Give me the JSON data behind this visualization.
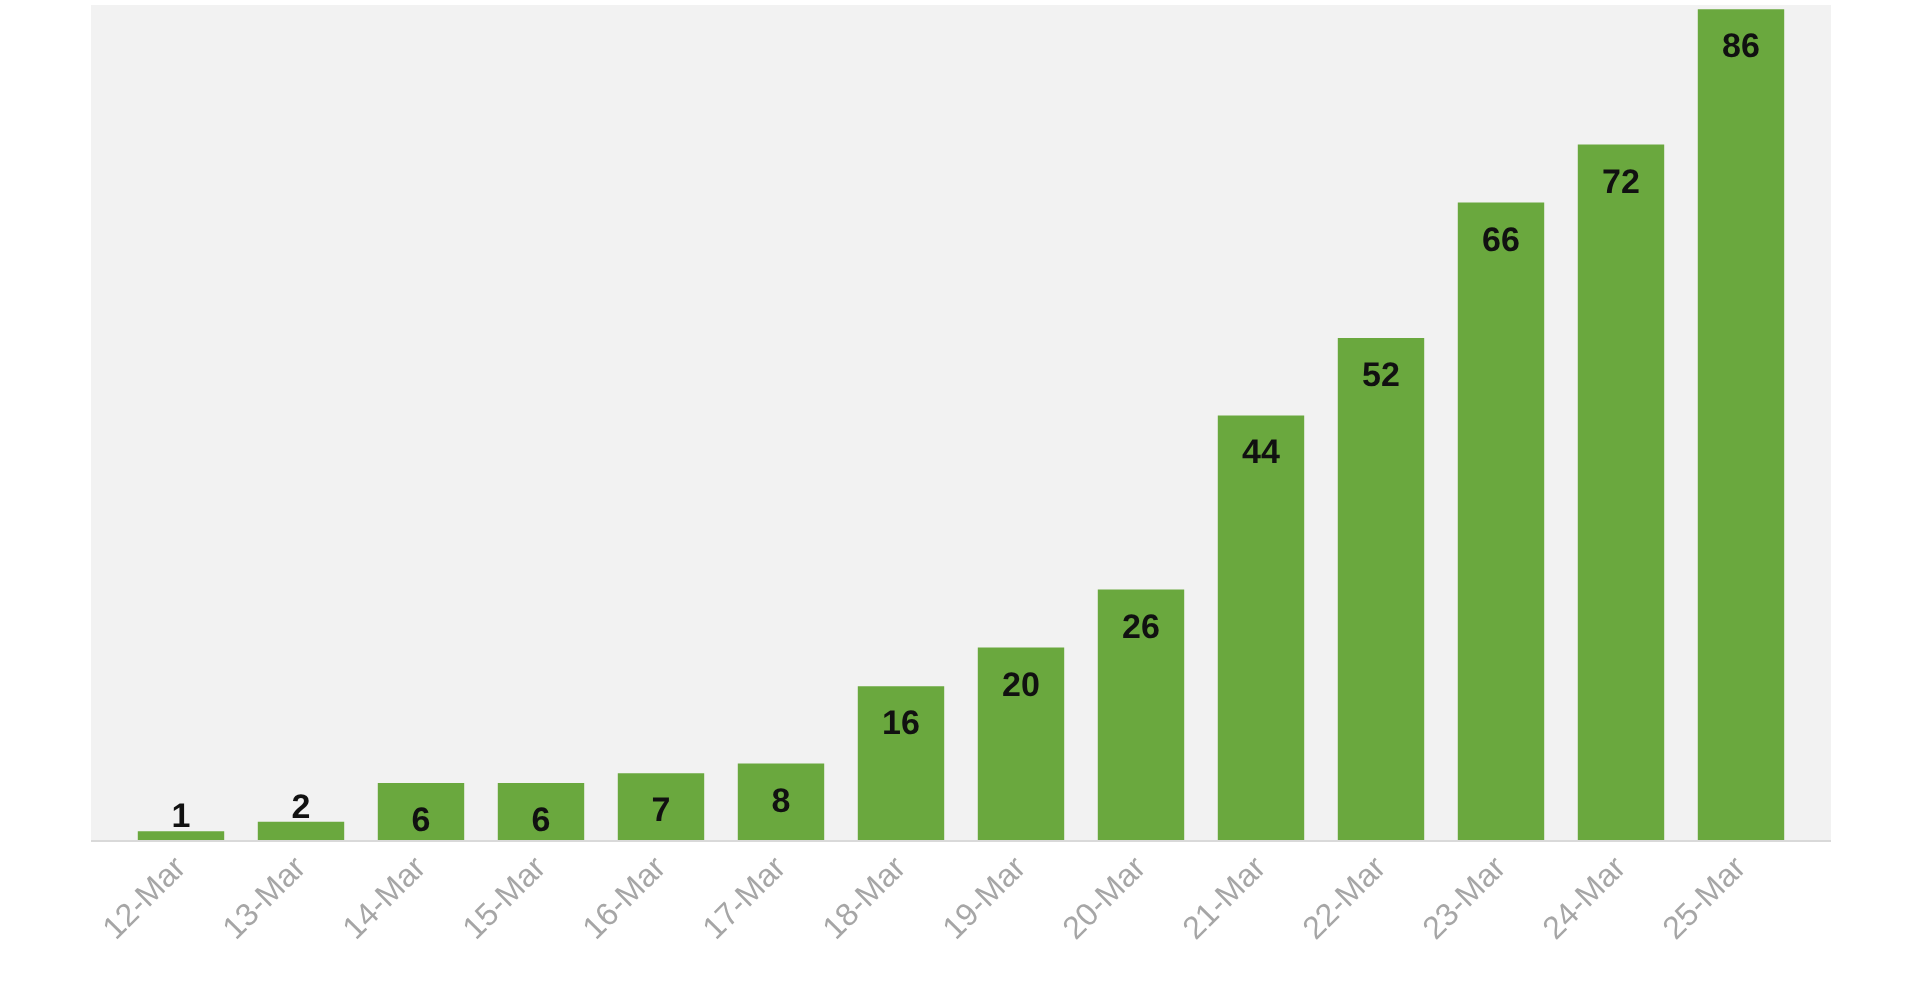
{
  "chart_data": {
    "type": "bar",
    "categories": [
      "12-Mar",
      "13-Mar",
      "14-Mar",
      "15-Mar",
      "16-Mar",
      "17-Mar",
      "18-Mar",
      "19-Mar",
      "20-Mar",
      "21-Mar",
      "22-Mar",
      "23-Mar",
      "24-Mar",
      "25-Mar"
    ],
    "values": [
      1,
      2,
      6,
      6,
      7,
      8,
      16,
      20,
      26,
      44,
      52,
      66,
      72,
      86
    ],
    "color": "#6aa83e",
    "data_labels": true,
    "grid": false
  }
}
